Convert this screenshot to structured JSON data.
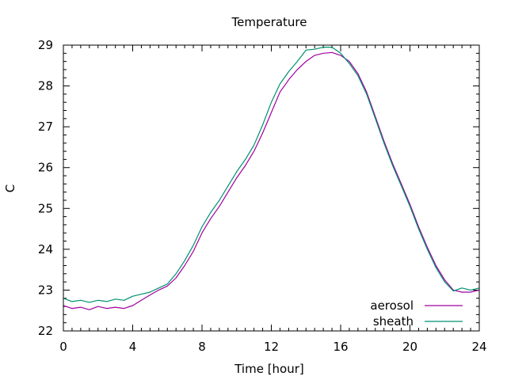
{
  "chart_data": {
    "type": "line",
    "title": "Temperature",
    "xlabel": "Time [hour]",
    "ylabel": "C",
    "xlim": [
      0,
      24
    ],
    "ylim": [
      22,
      29
    ],
    "xticks": [
      0,
      4,
      8,
      12,
      16,
      20,
      24
    ],
    "yticks": [
      22,
      23,
      24,
      25,
      26,
      27,
      28,
      29
    ],
    "xtick_labels": [
      "0",
      "4",
      "8",
      "12",
      "16",
      "20",
      "24"
    ],
    "ytick_labels": [
      "22",
      "23",
      "24",
      "25",
      "26",
      "27",
      "28",
      "29"
    ],
    "grid": false,
    "legend_position": "bottom-right",
    "series": [
      {
        "name": "aerosol",
        "color": "#a000a0",
        "points": [
          [
            0,
            22.62
          ],
          [
            0.5,
            22.55
          ],
          [
            1,
            22.58
          ],
          [
            1.5,
            22.52
          ],
          [
            2,
            22.6
          ],
          [
            2.5,
            22.55
          ],
          [
            3,
            22.58
          ],
          [
            3.5,
            22.55
          ],
          [
            4,
            22.62
          ],
          [
            4.5,
            22.75
          ],
          [
            5,
            22.88
          ],
          [
            5.5,
            23.0
          ],
          [
            6,
            23.1
          ],
          [
            6.5,
            23.3
          ],
          [
            7,
            23.6
          ],
          [
            7.5,
            23.95
          ],
          [
            8,
            24.4
          ],
          [
            8.5,
            24.75
          ],
          [
            9,
            25.05
          ],
          [
            9.5,
            25.4
          ],
          [
            10,
            25.75
          ],
          [
            10.5,
            26.05
          ],
          [
            11,
            26.4
          ],
          [
            11.5,
            26.85
          ],
          [
            12,
            27.35
          ],
          [
            12.5,
            27.85
          ],
          [
            13,
            28.15
          ],
          [
            13.5,
            28.4
          ],
          [
            14,
            28.6
          ],
          [
            14.5,
            28.75
          ],
          [
            15,
            28.8
          ],
          [
            15.5,
            28.82
          ],
          [
            16,
            28.75
          ],
          [
            16.5,
            28.6
          ],
          [
            17,
            28.3
          ],
          [
            17.5,
            27.85
          ],
          [
            18,
            27.25
          ],
          [
            18.5,
            26.65
          ],
          [
            19,
            26.1
          ],
          [
            19.5,
            25.6
          ],
          [
            20,
            25.1
          ],
          [
            20.5,
            24.55
          ],
          [
            21,
            24.05
          ],
          [
            21.5,
            23.6
          ],
          [
            22,
            23.25
          ],
          [
            22.5,
            23.0
          ],
          [
            23,
            22.95
          ],
          [
            23.5,
            22.95
          ],
          [
            24,
            23.0
          ]
        ]
      },
      {
        "name": "sheath",
        "color": "#009070",
        "points": [
          [
            0,
            22.8
          ],
          [
            0.5,
            22.72
          ],
          [
            1,
            22.75
          ],
          [
            1.5,
            22.7
          ],
          [
            2,
            22.75
          ],
          [
            2.5,
            22.72
          ],
          [
            3,
            22.78
          ],
          [
            3.5,
            22.75
          ],
          [
            4,
            22.85
          ],
          [
            4.5,
            22.9
          ],
          [
            5,
            22.95
          ],
          [
            5.5,
            23.05
          ],
          [
            6,
            23.15
          ],
          [
            6.5,
            23.4
          ],
          [
            7,
            23.72
          ],
          [
            7.5,
            24.1
          ],
          [
            8,
            24.55
          ],
          [
            8.5,
            24.9
          ],
          [
            9,
            25.2
          ],
          [
            9.5,
            25.55
          ],
          [
            10,
            25.9
          ],
          [
            10.5,
            26.2
          ],
          [
            11,
            26.55
          ],
          [
            11.5,
            27.05
          ],
          [
            12,
            27.6
          ],
          [
            12.5,
            28.05
          ],
          [
            13,
            28.35
          ],
          [
            13.5,
            28.6
          ],
          [
            14,
            28.88
          ],
          [
            14.5,
            28.9
          ],
          [
            15,
            28.95
          ],
          [
            15.5,
            28.95
          ],
          [
            16,
            28.8
          ],
          [
            16.5,
            28.55
          ],
          [
            17,
            28.25
          ],
          [
            17.5,
            27.8
          ],
          [
            18,
            27.2
          ],
          [
            18.5,
            26.6
          ],
          [
            19,
            26.05
          ],
          [
            19.5,
            25.55
          ],
          [
            20,
            25.05
          ],
          [
            20.5,
            24.5
          ],
          [
            21,
            24.0
          ],
          [
            21.5,
            23.55
          ],
          [
            22,
            23.2
          ],
          [
            22.5,
            22.98
          ],
          [
            23,
            23.05
          ],
          [
            23.5,
            23.0
          ],
          [
            24,
            23.05
          ]
        ]
      }
    ]
  }
}
